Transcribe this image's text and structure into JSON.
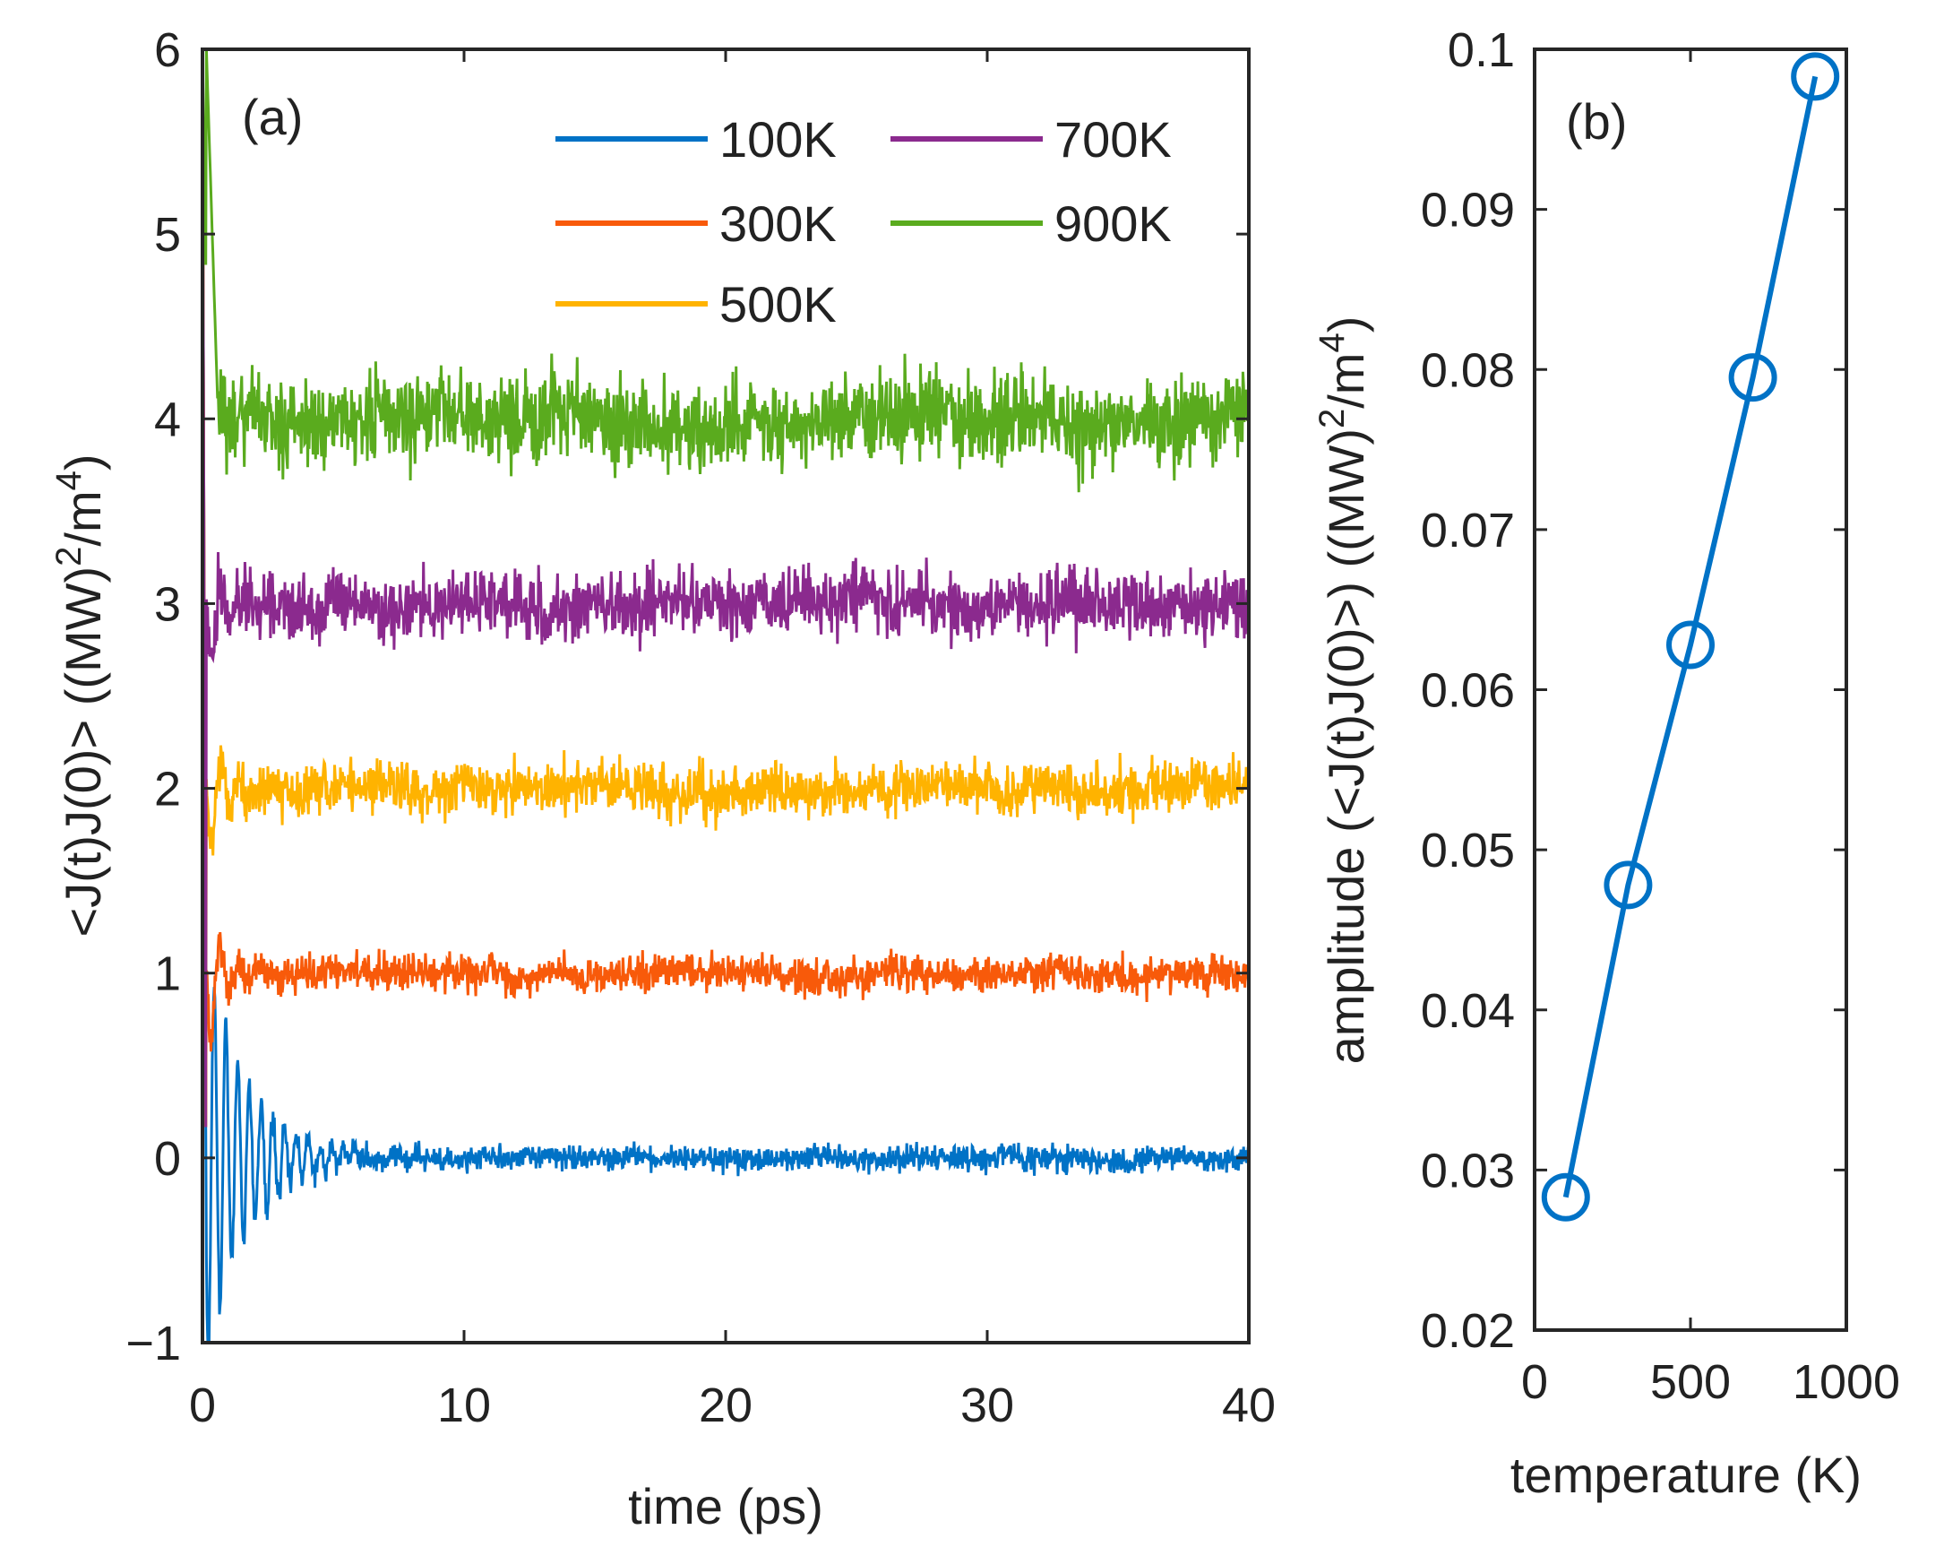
{
  "chart_data": [
    {
      "type": "line",
      "panel_label": "(a)",
      "xlabel": "time (ps)",
      "ylabel": "<J(t)J(0)> ((MW)²/m⁴)",
      "ylabel_parts": {
        "main": "<J(t)J(0)> ((MW)",
        "sup1": "2",
        "mid": "/m",
        "sup2": "4",
        "end": ")"
      },
      "xlim": [
        0,
        40
      ],
      "ylim": [
        -1,
        6
      ],
      "xticks": [
        "0",
        "10",
        "20",
        "30",
        "40"
      ],
      "yticks": [
        "−1",
        "0",
        "1",
        "2",
        "3",
        "4",
        "5",
        "6"
      ],
      "legend_placement": "top-right",
      "note": "curves vertically offset by 1 per temperature; noisy fluctuation around offset",
      "series": [
        {
          "name": "100K",
          "color": "#0072c6",
          "offset": 0,
          "noise": 0.05,
          "ring": 0.75
        },
        {
          "name": "300K",
          "color": "#f85a0a",
          "offset": 1,
          "noise": 0.07,
          "ring": 0.7
        },
        {
          "name": "500K",
          "color": "#ffb300",
          "offset": 2,
          "noise": 0.1,
          "ring": 0.6
        },
        {
          "name": "700K",
          "color": "#8b2a8e",
          "offset": 3,
          "noise": 0.13,
          "ring": 0.6
        },
        {
          "name": "900K",
          "color": "#5aab1e",
          "offset": 4,
          "noise": 0.17,
          "ring": 0.3
        }
      ]
    },
    {
      "type": "line",
      "panel_label": "(b)",
      "xlabel": "temperature (K)",
      "ylabel_parts": {
        "main": "amplitude (<J(t)J(0)>) ((MW)",
        "sup1": "2",
        "mid": "/m",
        "sup2": "4",
        "end": ")"
      },
      "xlim": [
        0,
        1000
      ],
      "ylim": [
        0.02,
        0.1
      ],
      "xticks": [
        "0",
        "500",
        "1000"
      ],
      "yticks": [
        "0.02",
        "0.03",
        "0.04",
        "0.05",
        "0.06",
        "0.07",
        "0.08",
        "0.09",
        "0.1"
      ],
      "marker": "circle",
      "color": "#0072c6",
      "x": [
        100,
        300,
        500,
        700,
        900
      ],
      "y": [
        0.0283,
        0.0478,
        0.0628,
        0.0795,
        0.0983
      ]
    }
  ]
}
